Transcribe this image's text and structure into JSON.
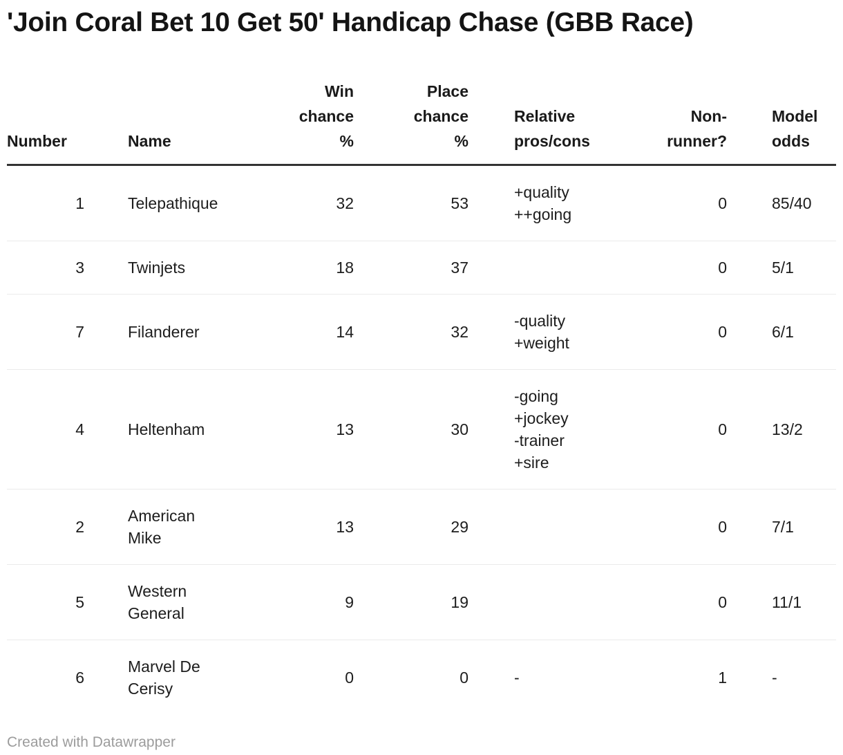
{
  "chart_data": {
    "type": "table",
    "title": "'Join Coral Bet 10 Get 50' Handicap Chase (GBB Race)",
    "columns": [
      "Number",
      "Name",
      "Win chance %",
      "Place chance %",
      "Relative pros/cons",
      "Non-runner?",
      "Model odds"
    ],
    "rows": [
      [
        "1",
        "Telepathique",
        "32",
        "53",
        "+quality\n++going",
        "0",
        "85/40"
      ],
      [
        "3",
        "Twinjets",
        "18",
        "37",
        "",
        "0",
        "5/1"
      ],
      [
        "7",
        "Filanderer",
        "14",
        "32",
        "-quality\n+weight",
        "0",
        "6/1"
      ],
      [
        "4",
        "Heltenham",
        "13",
        "30",
        "-going\n+jockey\n-trainer\n+sire",
        "0",
        "13/2"
      ],
      [
        "2",
        "American Mike",
        "13",
        "29",
        "",
        "0",
        "7/1"
      ],
      [
        "5",
        "Western General",
        "9",
        "19",
        "",
        "0",
        "11/1"
      ],
      [
        "6",
        "Marvel De Cerisy",
        "0",
        "0",
        "-",
        "1",
        "-"
      ]
    ],
    "layout_hints": {
      "column_alignments": [
        "right",
        "left",
        "right",
        "right",
        "left",
        "right",
        "left"
      ],
      "header_rule": "thick-dark",
      "row_separator": "light-gray"
    }
  },
  "footer": {
    "credit": "Created with Datawrapper"
  },
  "colors": {
    "text": "#1d1d1d",
    "title": "#141414",
    "header_rule": "#333333",
    "row_separator": "#ebebeb",
    "credit_text": "#9c9c9c",
    "background": "#ffffff"
  }
}
